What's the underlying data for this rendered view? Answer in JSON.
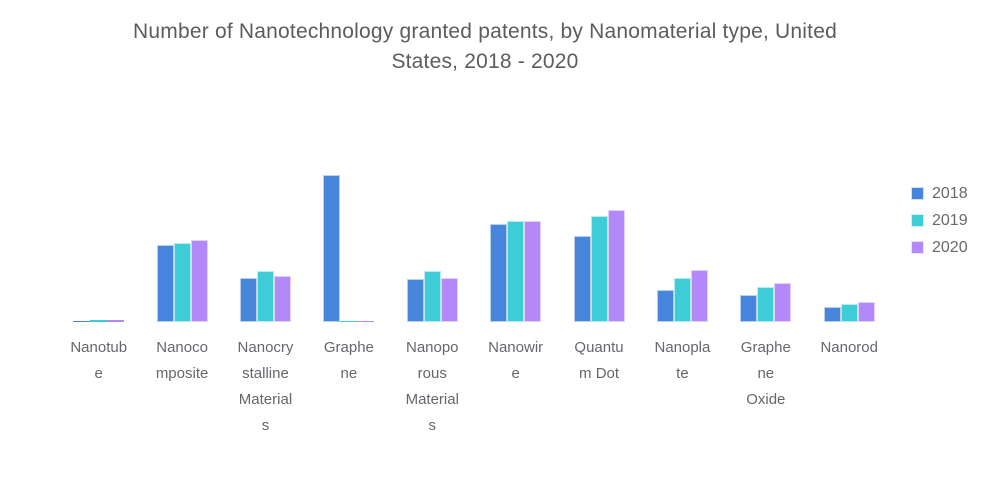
{
  "title": {
    "text": "Number of Nanotechnology granted patents, by Nanomaterial type, United States, 2018 - 2020",
    "lines": [
      "Number of Nanotechnology granted patents, by Nanomaterial type, United",
      "States, 2018 - 2020"
    ]
  },
  "legend": {
    "items": [
      {
        "label": "2018",
        "color": "#4685DB"
      },
      {
        "label": "2019",
        "color": "#3ECCD7"
      },
      {
        "label": "2020",
        "color": "#B389FA"
      }
    ]
  },
  "colors": {
    "background": "#ffffff",
    "title_text": "#5b5c5e",
    "axis_label_text": "#65676c",
    "legend_text": "#66686c",
    "series_2018": "#4685DB",
    "series_2019": "#3ECCD7",
    "series_2020": "#B389FA"
  },
  "chart_data": {
    "type": "bar",
    "title": "Number of Nanotechnology granted patents, by Nanomaterial type, United States, 2018 - 2020",
    "xlabel": "",
    "ylabel": "",
    "grid": false,
    "y_axis_visible": false,
    "legend_position": "right",
    "ylim": [
      0,
      4500
    ],
    "categories": [
      "Nanotube",
      "Nanocomposite",
      "Nanocrystalline Materials",
      "Graphene",
      "Nanoporous Materials",
      "Nanowire",
      "Quantum Dot",
      "Nanoplate",
      "Graphene Oxide",
      "Nanorod"
    ],
    "categories_display_lines": [
      [
        "Nanotub",
        "e"
      ],
      [
        "Nanoco",
        "mposite"
      ],
      [
        "Nanocry",
        "stalline",
        "Material",
        "s"
      ],
      [
        "Graphe",
        "ne"
      ],
      [
        "Nanopo",
        "rous",
        "Material",
        "s"
      ],
      [
        "Nanowir",
        "e"
      ],
      [
        "Quantu",
        "m Dot"
      ],
      [
        "Nanopla",
        "te"
      ],
      [
        "Graphe",
        "ne",
        "Oxide"
      ],
      [
        "Nanorod"
      ]
    ],
    "series": [
      {
        "name": "2018",
        "color": "#4685DB",
        "values": [
          30,
          1540,
          890,
          2940,
          860,
          1960,
          1720,
          650,
          540,
          300
        ]
      },
      {
        "name": "2019",
        "color": "#3ECCD7",
        "values": [
          40,
          1590,
          1030,
          15,
          1020,
          2030,
          2120,
          880,
          700,
          370
        ]
      },
      {
        "name": "2020",
        "color": "#B389FA",
        "values": [
          40,
          1650,
          930,
          15,
          890,
          2030,
          2250,
          1040,
          780,
          400
        ]
      }
    ]
  }
}
